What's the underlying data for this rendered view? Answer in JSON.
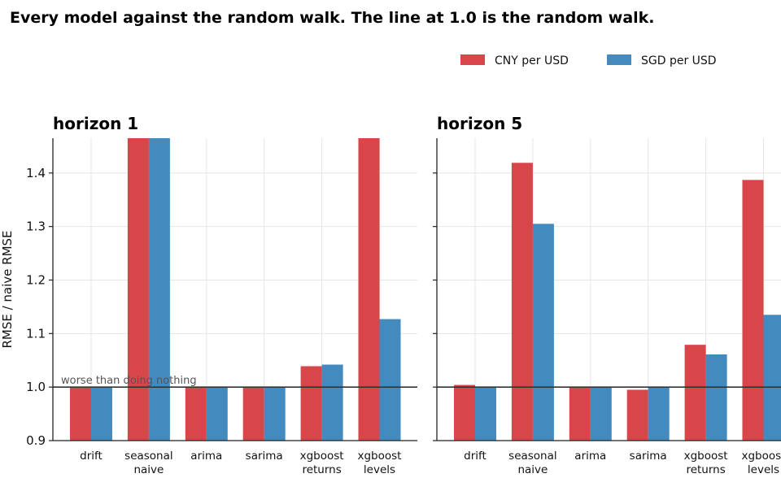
{
  "title": "Every model against the random walk. The line at 1.0 is the random walk.",
  "legend": {
    "position": "top-right",
    "items": [
      {
        "name": "CNY per USD",
        "color": "#d9464a"
      },
      {
        "name": "SGD per USD",
        "color": "#438bbf"
      }
    ]
  },
  "chart_data": [
    {
      "type": "bar",
      "title": "horizon 1",
      "ylabel": "RMSE / naive RMSE",
      "ylim": [
        0.9,
        1.465
      ],
      "yticks": [
        "0.9",
        "1.0",
        "1.1",
        "1.2",
        "1.3",
        "1.4"
      ],
      "grid": true,
      "categories": [
        "drift",
        "seasonal\nnaive",
        "arima",
        "sarima",
        "xgboost\nreturns",
        "xgboost\nlevels"
      ],
      "series": [
        {
          "name": "CNY per USD",
          "values": [
            1.0,
            1.465,
            1.0,
            1.0,
            1.039,
            1.465
          ]
        },
        {
          "name": "SGD per USD",
          "values": [
            1.0,
            1.465,
            1.0,
            1.0,
            1.042,
            1.127
          ]
        }
      ],
      "reference_line": {
        "y": 1.0,
        "label": "worse than doing nothing"
      }
    },
    {
      "type": "bar",
      "title": "horizon 5",
      "ylim": [
        0.9,
        1.465
      ],
      "grid": true,
      "categories": [
        "drift",
        "seasonal\nnaive",
        "arima",
        "sarima",
        "xgboost\nreturns",
        "xgboost\nlevels"
      ],
      "series": [
        {
          "name": "CNY per USD",
          "values": [
            1.004,
            1.419,
            1.0,
            0.995,
            1.079,
            1.387
          ]
        },
        {
          "name": "SGD per USD",
          "values": [
            1.0,
            1.305,
            1.0,
            1.0,
            1.061,
            1.135
          ]
        }
      ],
      "reference_line": {
        "y": 1.0
      }
    }
  ],
  "colors": {
    "cny": "#d9464a",
    "sgd": "#438bbf",
    "grid": "#e6e6e6",
    "axis": "#222222",
    "reference": "#333333"
  }
}
